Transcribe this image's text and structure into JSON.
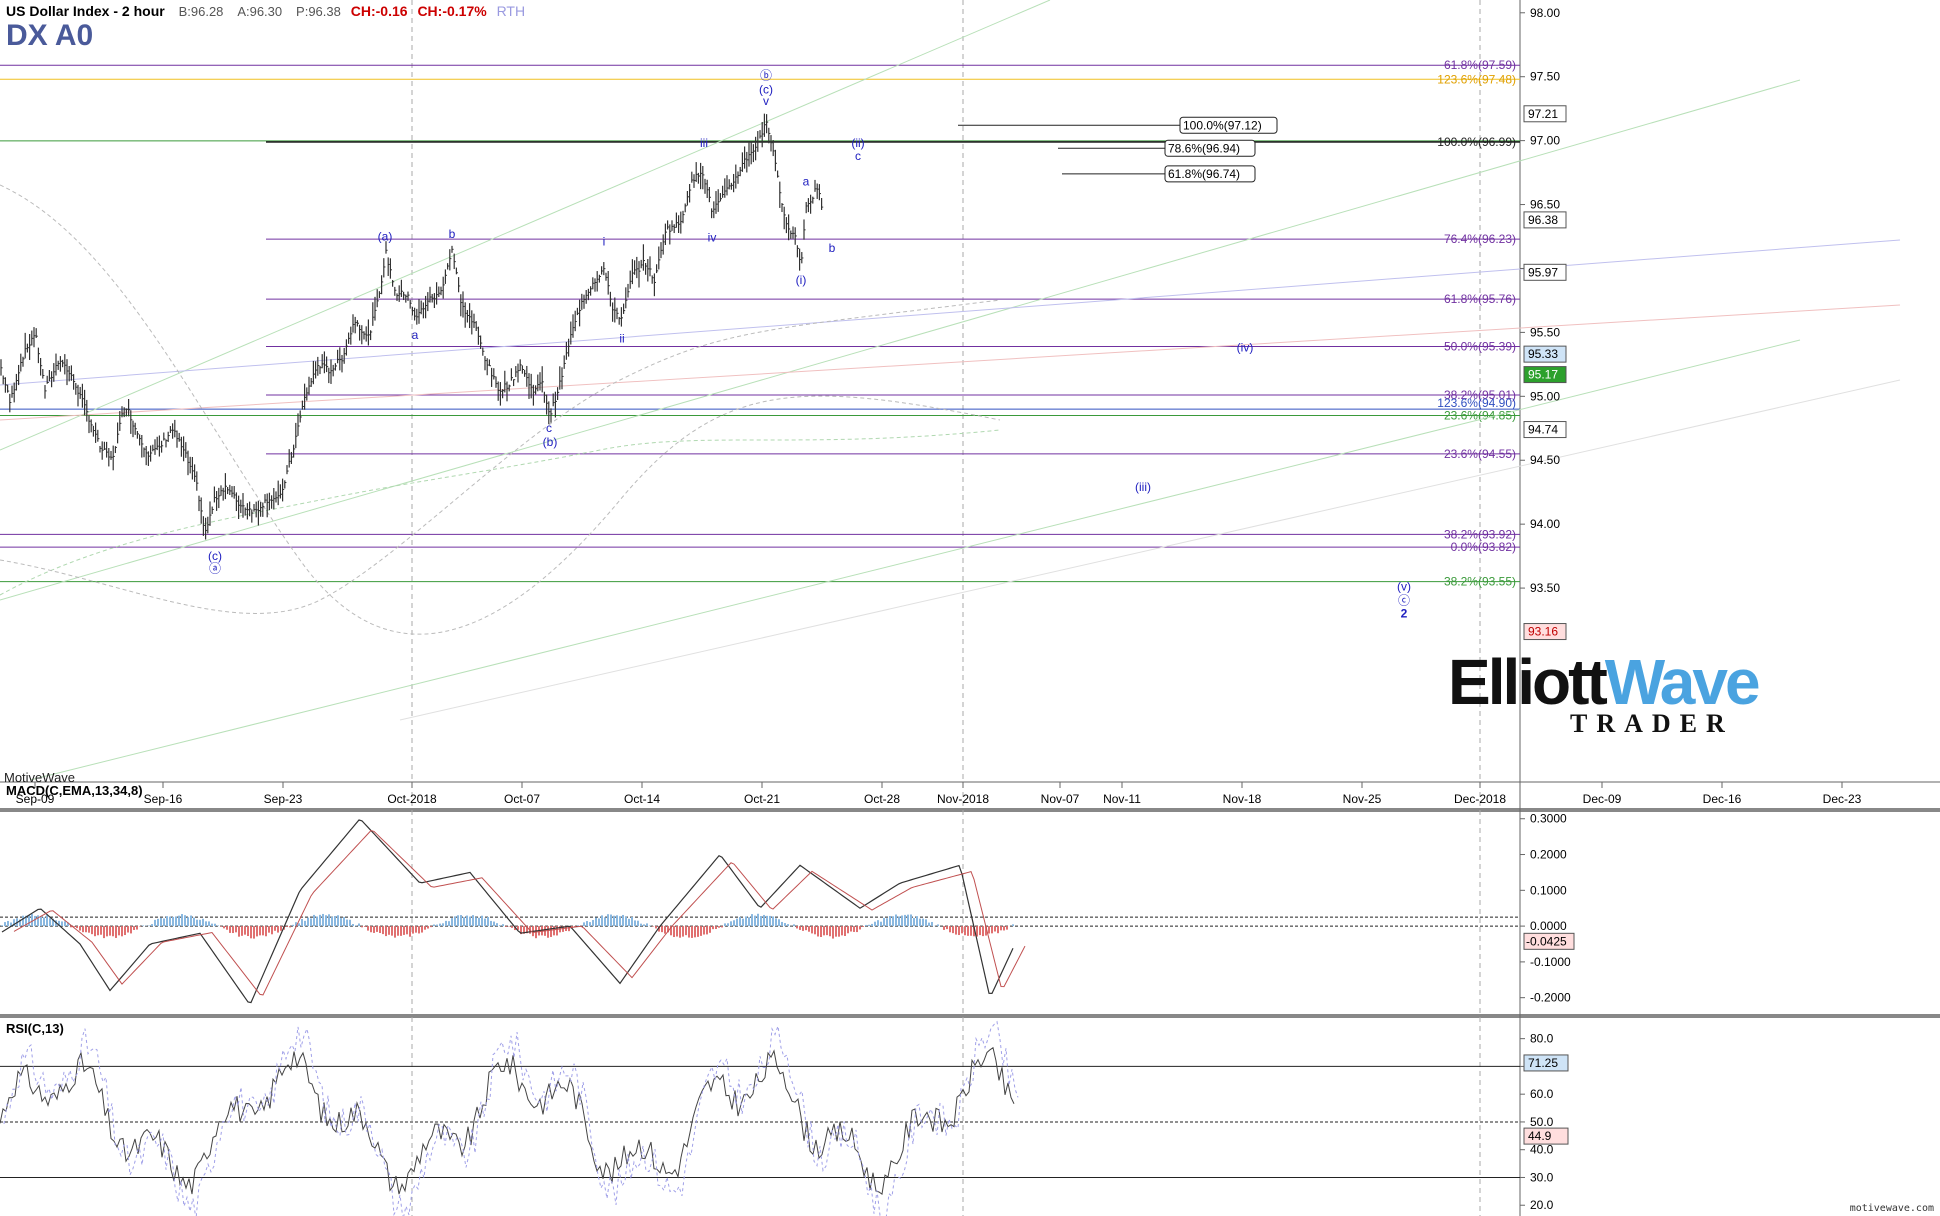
{
  "header": {
    "instrument": "US Dollar Index - 2 hour",
    "bid": "B:96.28",
    "ask": "A:96.30",
    "price": "P:96.38",
    "change": "CH:-0.16",
    "change_pct": "CH:-0.17%",
    "session": "RTH",
    "symbol": "DX A0"
  },
  "footer": {
    "platform": "MotiveWave",
    "credit": "motivewave.com"
  },
  "logo": {
    "text_a": "Elliott",
    "text_b": "Wave",
    "text_c": "TRADER"
  },
  "colors": {
    "price_bars": "#333333",
    "fib_purple": "#7030a0",
    "fib_green": "#3a9a3a",
    "fib_gold": "#f0c020",
    "wave_label": "#2020c0",
    "macd_pos": "#8ab8e0",
    "macd_neg": "#e07070",
    "logo_blue": "#4aa3e0"
  },
  "chart_data": [
    {
      "type": "line",
      "title": "US Dollar Index - 2 hour",
      "x_tick_labels": [
        "Sep-09",
        "Sep-16",
        "Sep-23",
        "Oct-2018",
        "Oct-07",
        "Oct-14",
        "Oct-21",
        "Oct-28",
        "Nov-2018",
        "Nov-07",
        "Nov-11",
        "Nov-18",
        "Nov-25",
        "Dec-2018",
        "Dec-09",
        "Dec-16",
        "Dec-23"
      ],
      "y_ticks": [
        "98.00",
        "97.50",
        "97.00",
        "96.50",
        "96.00",
        "95.50",
        "95.00",
        "94.50",
        "94.00",
        "93.50"
      ],
      "ylim": [
        93.0,
        98.1
      ],
      "last_price": 96.38,
      "price_path": [
        {
          "x": 0,
          "y": 95.25
        },
        {
          "x": 10,
          "y": 94.95
        },
        {
          "x": 22,
          "y": 95.3
        },
        {
          "x": 35,
          "y": 95.5
        },
        {
          "x": 45,
          "y": 95.05
        },
        {
          "x": 60,
          "y": 95.3
        },
        {
          "x": 75,
          "y": 95.1
        },
        {
          "x": 88,
          "y": 94.85
        },
        {
          "x": 100,
          "y": 94.6
        },
        {
          "x": 112,
          "y": 94.5
        },
        {
          "x": 125,
          "y": 94.95
        },
        {
          "x": 135,
          "y": 94.75
        },
        {
          "x": 148,
          "y": 94.55
        },
        {
          "x": 160,
          "y": 94.6
        },
        {
          "x": 172,
          "y": 94.75
        },
        {
          "x": 185,
          "y": 94.55
        },
        {
          "x": 197,
          "y": 94.3
        },
        {
          "x": 205,
          "y": 93.92
        },
        {
          "x": 215,
          "y": 94.2
        },
        {
          "x": 225,
          "y": 94.3
        },
        {
          "x": 240,
          "y": 94.15
        },
        {
          "x": 255,
          "y": 94.1
        },
        {
          "x": 268,
          "y": 94.2
        },
        {
          "x": 280,
          "y": 94.2
        },
        {
          "x": 292,
          "y": 94.55
        },
        {
          "x": 305,
          "y": 95.0
        },
        {
          "x": 318,
          "y": 95.25
        },
        {
          "x": 330,
          "y": 95.2
        },
        {
          "x": 342,
          "y": 95.3
        },
        {
          "x": 355,
          "y": 95.6
        },
        {
          "x": 368,
          "y": 95.45
        },
        {
          "x": 378,
          "y": 95.75
        },
        {
          "x": 386,
          "y": 96.12
        },
        {
          "x": 396,
          "y": 95.8
        },
        {
          "x": 408,
          "y": 95.8
        },
        {
          "x": 415,
          "y": 95.6
        },
        {
          "x": 428,
          "y": 95.75
        },
        {
          "x": 440,
          "y": 95.8
        },
        {
          "x": 452,
          "y": 96.15
        },
        {
          "x": 462,
          "y": 95.7
        },
        {
          "x": 475,
          "y": 95.55
        },
        {
          "x": 485,
          "y": 95.3
        },
        {
          "x": 498,
          "y": 95.05
        },
        {
          "x": 510,
          "y": 95.1
        },
        {
          "x": 520,
          "y": 95.25
        },
        {
          "x": 532,
          "y": 95.05
        },
        {
          "x": 542,
          "y": 95.1
        },
        {
          "x": 550,
          "y": 94.85
        },
        {
          "x": 560,
          "y": 95.1
        },
        {
          "x": 570,
          "y": 95.45
        },
        {
          "x": 582,
          "y": 95.75
        },
        {
          "x": 594,
          "y": 95.9
        },
        {
          "x": 604,
          "y": 96.0
        },
        {
          "x": 612,
          "y": 95.7
        },
        {
          "x": 622,
          "y": 95.6
        },
        {
          "x": 632,
          "y": 95.95
        },
        {
          "x": 645,
          "y": 96.05
        },
        {
          "x": 655,
          "y": 95.9
        },
        {
          "x": 665,
          "y": 96.3
        },
        {
          "x": 680,
          "y": 96.35
        },
        {
          "x": 690,
          "y": 96.65
        },
        {
          "x": 702,
          "y": 96.78
        },
        {
          "x": 712,
          "y": 96.45
        },
        {
          "x": 722,
          "y": 96.55
        },
        {
          "x": 735,
          "y": 96.7
        },
        {
          "x": 745,
          "y": 96.85
        },
        {
          "x": 755,
          "y": 96.95
        },
        {
          "x": 762,
          "y": 97.05
        },
        {
          "x": 766,
          "y": 97.18
        },
        {
          "x": 772,
          "y": 96.95
        },
        {
          "x": 780,
          "y": 96.6
        },
        {
          "x": 788,
          "y": 96.3
        },
        {
          "x": 796,
          "y": 96.25
        },
        {
          "x": 801,
          "y": 96.0
        },
        {
          "x": 806,
          "y": 96.5
        },
        {
          "x": 812,
          "y": 96.55
        },
        {
          "x": 818,
          "y": 96.65
        },
        {
          "x": 823,
          "y": 96.38
        }
      ],
      "fib_levels": [
        {
          "label": "61.8%(97.59)",
          "value": 97.59,
          "color": "purple"
        },
        {
          "label": "123.6%(97.48)",
          "value": 97.48,
          "color": "gold"
        },
        {
          "label": "100.0%(96.99)",
          "value": 96.99,
          "color": "dark"
        },
        {
          "label": "76.4%(96.23)",
          "value": 96.23,
          "color": "purple"
        },
        {
          "label": "61.8%(95.76)",
          "value": 95.76,
          "color": "purple"
        },
        {
          "label": "50.0%(95.39)",
          "value": 95.39,
          "color": "purple"
        },
        {
          "label": "38.2%(95.01)",
          "value": 95.01,
          "color": "purple"
        },
        {
          "label": "123.6%(94.90)",
          "value": 94.9,
          "color": "blue"
        },
        {
          "label": "23.6%(94.85)",
          "value": 94.85,
          "color": "green"
        },
        {
          "label": "23.6%(94.55)",
          "value": 94.55,
          "color": "purple"
        },
        {
          "label": "38.2%(93.92)",
          "value": 93.92,
          "color": "purple"
        },
        {
          "label": "0.0%(93.82)",
          "value": 93.82,
          "color": "purple"
        },
        {
          "label": "38.2%(93.55)",
          "value": 93.55,
          "color": "green"
        }
      ],
      "target_boxes": [
        {
          "label": "100.0%(97.12)",
          "value": 97.12
        },
        {
          "label": "78.6%(96.94)",
          "value": 96.94
        },
        {
          "label": "61.8%(96.74)",
          "value": 96.74
        }
      ],
      "price_tags": [
        {
          "label": "97.21",
          "value": 97.21,
          "bg": "#ffffff",
          "fg": "#000000"
        },
        {
          "label": "96.38",
          "value": 96.38,
          "bg": "#ffffff",
          "fg": "#000000"
        },
        {
          "label": "95.97",
          "value": 95.97,
          "bg": "#ffffff",
          "fg": "#000000"
        },
        {
          "label": "95.33",
          "value": 95.33,
          "bg": "#cfe4f7",
          "fg": "#000000"
        },
        {
          "label": "95.17",
          "value": 95.17,
          "bg": "#2ca02c",
          "fg": "#ffffff"
        },
        {
          "label": "94.74",
          "value": 94.74,
          "bg": "#ffffff",
          "fg": "#000000"
        },
        {
          "label": "93.16",
          "value": 93.16,
          "bg": "#ffdede",
          "fg": "#c00000"
        }
      ],
      "wave_labels": [
        {
          "text": "(c)",
          "x": 215,
          "y": 93.72
        },
        {
          "text": "ⓐ",
          "x": 215,
          "y": 93.62
        },
        {
          "text": "(a)",
          "x": 385,
          "y": 96.22
        },
        {
          "text": "a",
          "x": 415,
          "y": 95.45
        },
        {
          "text": "b",
          "x": 452,
          "y": 96.24
        },
        {
          "text": "c",
          "x": 549,
          "y": 94.72
        },
        {
          "text": "(b)",
          "x": 550,
          "y": 94.61
        },
        {
          "text": "i",
          "x": 604,
          "y": 96.18
        },
        {
          "text": "ii",
          "x": 622,
          "y": 95.42
        },
        {
          "text": "iii",
          "x": 704,
          "y": 96.95
        },
        {
          "text": "iv",
          "x": 712,
          "y": 96.21
        },
        {
          "text": "ⓑ",
          "x": 766,
          "y": 97.48
        },
        {
          "text": "(c)",
          "x": 766,
          "y": 97.37
        },
        {
          "text": "v",
          "x": 766,
          "y": 97.28
        },
        {
          "text": "(ii)",
          "x": 858,
          "y": 96.95
        },
        {
          "text": "c",
          "x": 858,
          "y": 96.85
        },
        {
          "text": "a",
          "x": 806,
          "y": 96.65
        },
        {
          "text": "b",
          "x": 832,
          "y": 96.13
        },
        {
          "text": "(i)",
          "x": 801,
          "y": 95.88
        },
        {
          "text": "(iv)",
          "x": 1245,
          "y": 95.35
        },
        {
          "text": "(iii)",
          "x": 1143,
          "y": 94.26
        },
        {
          "text": "(v)",
          "x": 1404,
          "y": 93.48
        },
        {
          "text": "ⓒ",
          "x": 1404,
          "y": 93.37
        },
        {
          "text": "2",
          "x": 1404,
          "y": 93.27
        }
      ]
    },
    {
      "type": "line",
      "title": "MACD(C,EMA,13,34,8)",
      "y_ticks": [
        "0.3000",
        "0.2000",
        "0.1000",
        "0.0000",
        "-0.1000",
        "-0.2000"
      ],
      "ylim": [
        -0.24,
        0.33
      ],
      "last_value": "-0.0425"
    },
    {
      "type": "line",
      "title": "RSI(C,13)",
      "y_ticks": [
        "80.0",
        "70.0",
        "60.0",
        "50.0",
        "40.0",
        "30.0",
        "20.0"
      ],
      "ylim": [
        19,
        86
      ],
      "overbought": 70,
      "oversold": 30,
      "midline": 50,
      "tags": [
        {
          "label": "71.25",
          "value": 71.25
        },
        {
          "label": "44.9",
          "value": 44.9
        }
      ]
    }
  ]
}
